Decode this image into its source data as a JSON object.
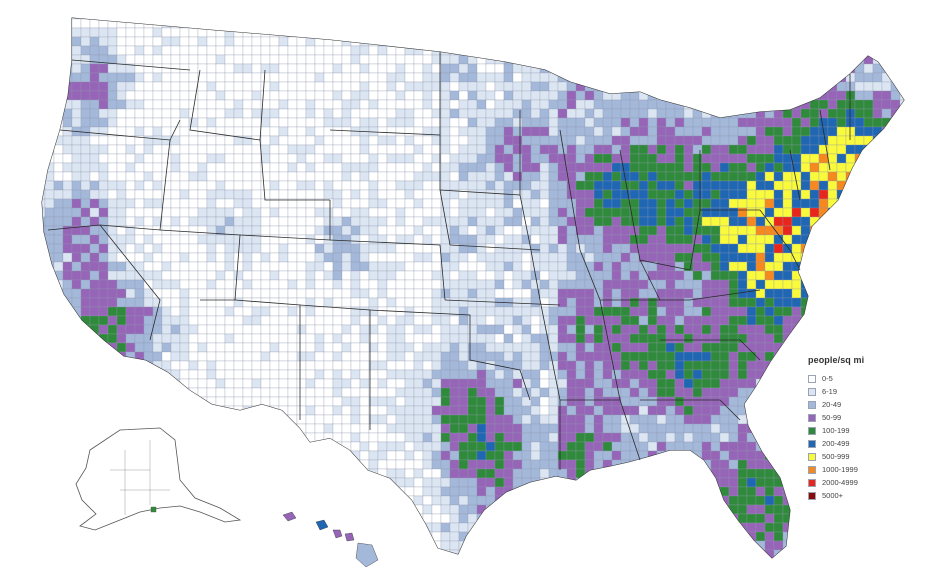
{
  "legend": {
    "title": "people/sq mi",
    "classes": [
      {
        "label": "0-5",
        "color": "#ffffff"
      },
      {
        "label": "6-19",
        "color": "#dce6f2"
      },
      {
        "label": "20-49",
        "color": "#a4b8da"
      },
      {
        "label": "50-99",
        "color": "#9665b8"
      },
      {
        "label": "100-199",
        "color": "#2f8a3b"
      },
      {
        "label": "200-499",
        "color": "#1f66b3"
      },
      {
        "label": "500-999",
        "color": "#fafa3c"
      },
      {
        "label": "1000-1999",
        "color": "#f5891f"
      },
      {
        "label": "2000-4999",
        "color": "#e8261c"
      },
      {
        "label": "5000+",
        "color": "#8b0a0a"
      }
    ]
  },
  "colors": {
    "border": "#2b2b2b",
    "county_line": "#8e98ad",
    "background": "#ffffff"
  }
}
